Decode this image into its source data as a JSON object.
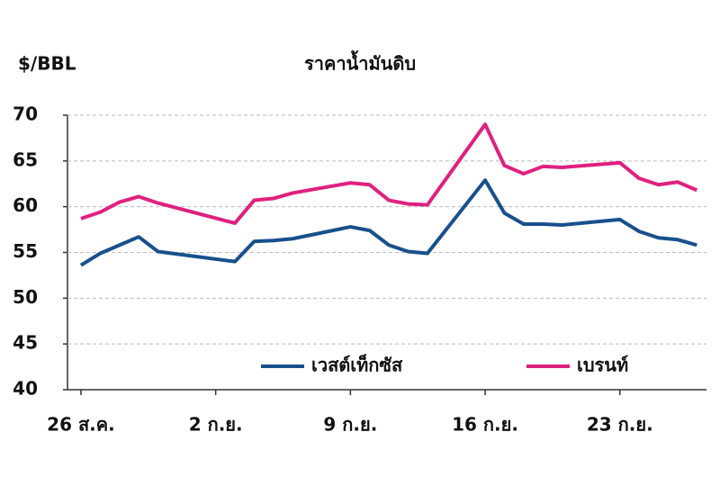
{
  "chart_data": {
    "type": "line",
    "title": "ราคาน้ำมันดิบ",
    "y_label": "$/BBL",
    "x": [
      0,
      1,
      2,
      3,
      4,
      8,
      9,
      10,
      11,
      14,
      15,
      16,
      17,
      18,
      21,
      22,
      23,
      24,
      25,
      28,
      29,
      30,
      31,
      32
    ],
    "xlim": [
      -0.7,
      32.5
    ],
    "xticks": [
      {
        "value": 0,
        "label": "26 ส.ค."
      },
      {
        "value": 7,
        "label": "2 ก.ย."
      },
      {
        "value": 14,
        "label": "9 ก.ย."
      },
      {
        "value": 21,
        "label": "16 ก.ย."
      },
      {
        "value": 28,
        "label": "23 ก.ย."
      }
    ],
    "ylim": [
      40,
      70
    ],
    "yticks": [
      40,
      45,
      50,
      55,
      60,
      65,
      70
    ],
    "grid": true,
    "series": [
      {
        "name": "เวสต์เท็กซัส",
        "color": "#18508c",
        "values": [
          53.6,
          54.9,
          55.8,
          56.7,
          55.1,
          54.0,
          56.2,
          56.3,
          56.5,
          57.8,
          57.4,
          55.8,
          55.1,
          54.9,
          62.9,
          59.3,
          58.1,
          58.1,
          58.0,
          58.6,
          57.3,
          56.6,
          56.4,
          55.8
        ]
      },
      {
        "name": "เบรนท์",
        "color": "#e0207f",
        "values": [
          58.7,
          59.4,
          60.5,
          61.1,
          60.4,
          58.2,
          60.7,
          60.9,
          61.5,
          62.6,
          62.4,
          60.7,
          60.3,
          60.2,
          69.0,
          64.5,
          63.6,
          64.4,
          64.3,
          64.8,
          63.1,
          62.4,
          62.7,
          61.8
        ]
      }
    ]
  }
}
